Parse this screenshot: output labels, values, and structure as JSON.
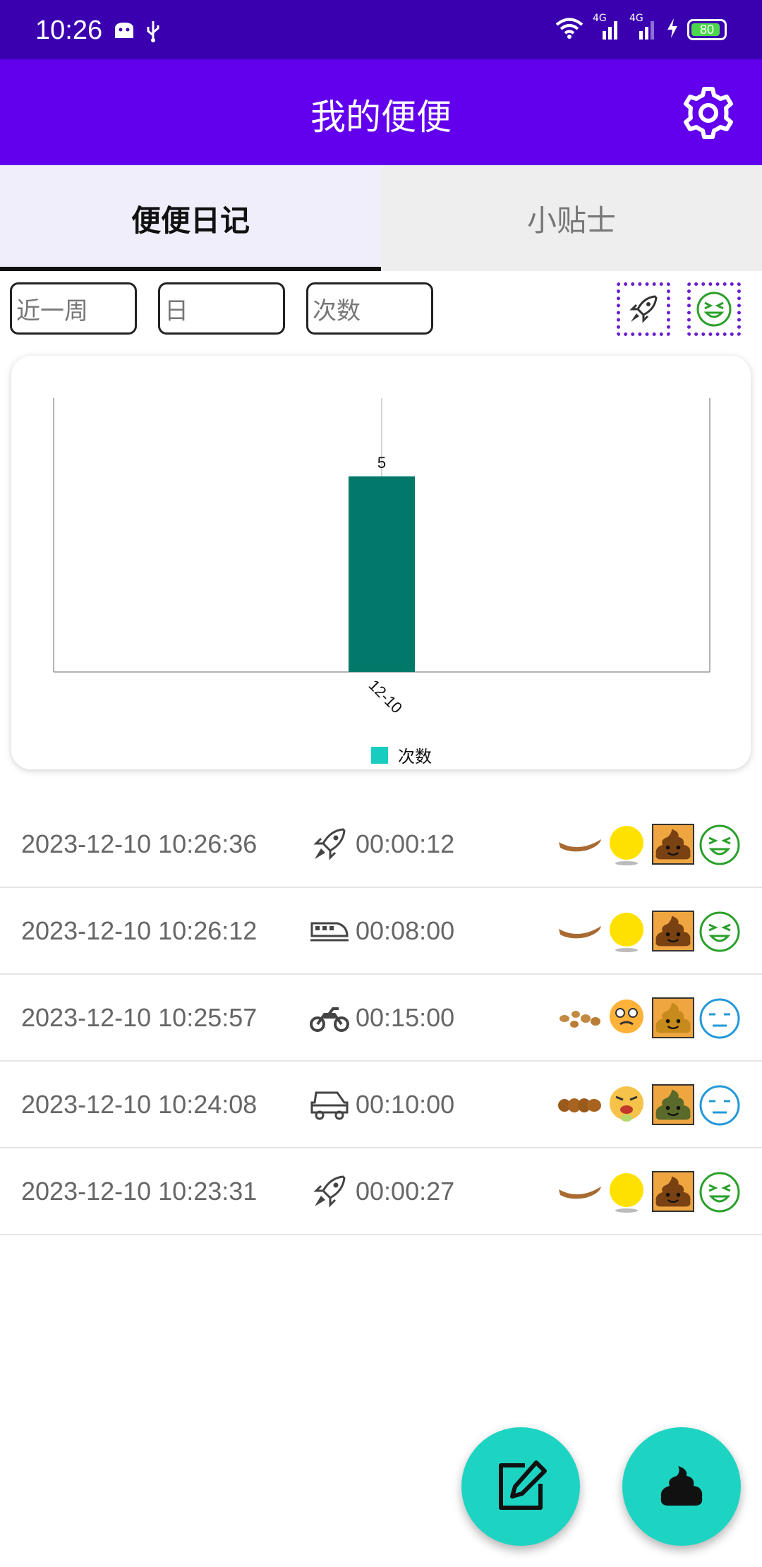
{
  "status_bar": {
    "time": "10:26",
    "network_1": "4G",
    "network_2": "4G",
    "battery": "80"
  },
  "app_bar": {
    "title": "我的便便"
  },
  "tabs": [
    {
      "label": "便便日记",
      "active": true
    },
    {
      "label": "小贴士",
      "active": false
    }
  ],
  "filters": {
    "range": "近一周",
    "unit": "日",
    "metric": "次数"
  },
  "chart_data": {
    "type": "bar",
    "categories": [
      "12-10"
    ],
    "series": [
      {
        "name": "次数",
        "values": [
          5
        ],
        "color": "#00796b"
      }
    ],
    "data_labels": [
      "5"
    ],
    "legend": "bottom-center",
    "legend_color": "#18cdc0"
  },
  "records": [
    {
      "datetime": "2023-12-10 10:26:36",
      "vehicle": "rocket-icon",
      "duration": "00:00:12",
      "shape": "banana",
      "color": "yellow",
      "stool": "brown",
      "mood": "happy"
    },
    {
      "datetime": "2023-12-10 10:26:12",
      "vehicle": "train-icon",
      "duration": "00:08:00",
      "shape": "banana",
      "color": "yellow",
      "stool": "brown",
      "mood": "happy"
    },
    {
      "datetime": "2023-12-10 10:25:57",
      "vehicle": "motorcycle-icon",
      "duration": "00:15:00",
      "shape": "pellets",
      "color": "orange",
      "stool": "golden",
      "mood": "neutral"
    },
    {
      "datetime": "2023-12-10 10:24:08",
      "vehicle": "car-icon",
      "duration": "00:10:00",
      "shape": "lumpy",
      "color": "sick",
      "stool": "green",
      "mood": "neutral"
    },
    {
      "datetime": "2023-12-10 10:23:31",
      "vehicle": "rocket-icon",
      "duration": "00:00:27",
      "shape": "banana",
      "color": "yellow",
      "stool": "brown",
      "mood": "happy"
    }
  ],
  "colors": {
    "status_bar": "#3a00b0",
    "app_bar": "#6200ee",
    "fab": "#1dd4c3",
    "bar": "#00796b"
  }
}
